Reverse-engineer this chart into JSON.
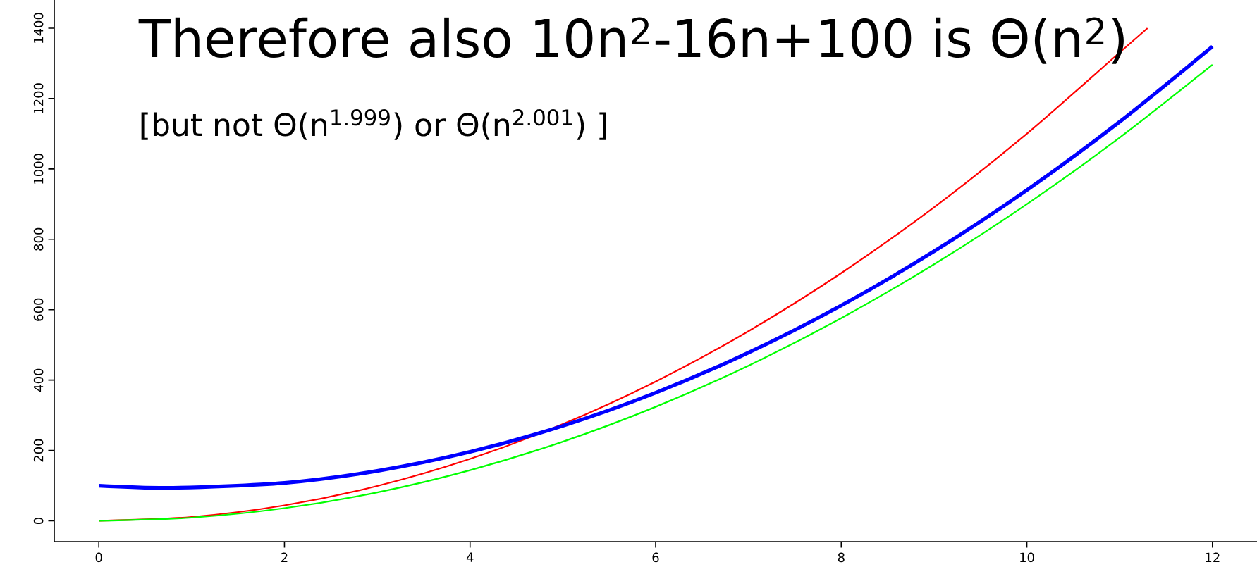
{
  "chart_data": {
    "type": "line",
    "annotations": [
      "Therefore also 10n$^{2}$-16n+100 is Θ(n$^{2}$)",
      "[but not Θ(n$^{1.999}$) or Θ(n$^{2.001}$) ]"
    ],
    "xlim": [
      -0.48,
      12.48
    ],
    "ylim": [
      -59,
      1480
    ],
    "xticks": [
      0,
      2,
      4,
      6,
      8,
      10,
      12
    ],
    "yticks": [
      0,
      200,
      400,
      600,
      800,
      1000,
      1200,
      1400
    ],
    "series": [
      {
        "color": "#ff0000",
        "x": [
          0,
          1,
          2,
          3,
          4,
          5,
          6,
          7,
          8,
          9,
          10,
          11,
          11.3
        ],
        "values": [
          0,
          11,
          44,
          99,
          176,
          275,
          396,
          539,
          704,
          891,
          1100,
          1331,
          1400
        ]
      },
      {
        "color": "#0000ff",
        "x": [
          0,
          0.8,
          2,
          3,
          4,
          5,
          6,
          7,
          8,
          9,
          10,
          11,
          12
        ],
        "values": [
          100,
          94,
          108,
          142,
          196,
          270,
          364,
          478,
          612,
          766,
          940,
          1134,
          1348
        ]
      },
      {
        "color": "#00ff00",
        "x": [
          0,
          1,
          2,
          3,
          4,
          5,
          6,
          7,
          8,
          9,
          10,
          11,
          12
        ],
        "values": [
          0,
          9,
          36,
          81,
          144,
          225,
          324,
          441,
          576,
          729,
          900,
          1089,
          1296
        ]
      }
    ]
  }
}
